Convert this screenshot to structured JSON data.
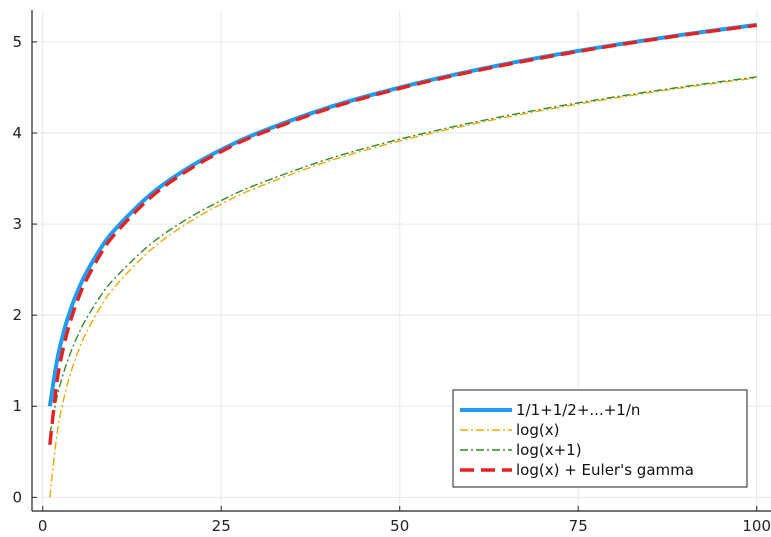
{
  "chart_data": {
    "type": "line",
    "title": "",
    "xlabel": "",
    "ylabel": "",
    "xlim": [
      -1.5,
      102
    ],
    "ylim": [
      -0.15,
      5.35
    ],
    "xticks": [
      0,
      25,
      50,
      75,
      100
    ],
    "yticks": [
      0,
      1,
      2,
      3,
      4,
      5
    ],
    "xtick_labels": [
      "0",
      "25",
      "50",
      "75",
      "100"
    ],
    "ytick_labels": [
      "0",
      "1",
      "2",
      "3",
      "4",
      "5"
    ],
    "grid": true,
    "legend_position": "bottom-right",
    "series": [
      {
        "name": "1/1+1/2+...+1/n",
        "color": "#1f9bf0",
        "style": "solid",
        "x": [
          1,
          2,
          3,
          4,
          5,
          6,
          8,
          10,
          15,
          20,
          25,
          30,
          40,
          50,
          60,
          70,
          80,
          90,
          100
        ],
        "y": [
          1.0,
          1.5,
          1.833,
          2.083,
          2.283,
          2.45,
          2.718,
          2.929,
          3.318,
          3.598,
          3.816,
          3.995,
          4.279,
          4.499,
          4.68,
          4.833,
          4.965,
          5.083,
          5.187
        ]
      },
      {
        "name": "log(x)",
        "color": "#f0a800",
        "style": "dashdot",
        "x": [
          1,
          2,
          3,
          4,
          5,
          6,
          8,
          10,
          15,
          20,
          25,
          30,
          40,
          50,
          60,
          70,
          80,
          90,
          100
        ],
        "y": [
          0.0,
          0.693,
          1.099,
          1.386,
          1.609,
          1.792,
          2.079,
          2.303,
          2.708,
          2.996,
          3.219,
          3.401,
          3.689,
          3.912,
          4.094,
          4.248,
          4.382,
          4.5,
          4.605
        ]
      },
      {
        "name": "log(x+1)",
        "color": "#2e8b2e",
        "style": "dashdot",
        "x": [
          1,
          2,
          3,
          4,
          5,
          6,
          8,
          10,
          15,
          20,
          25,
          30,
          40,
          50,
          60,
          70,
          80,
          90,
          100
        ],
        "y": [
          0.693,
          1.099,
          1.386,
          1.609,
          1.792,
          1.946,
          2.197,
          2.398,
          2.773,
          3.045,
          3.258,
          3.434,
          3.714,
          3.932,
          4.111,
          4.263,
          4.394,
          4.511,
          4.615
        ]
      },
      {
        "name": "log(x) + Euler's gamma",
        "color": "#e82020",
        "style": "dash",
        "x": [
          1,
          2,
          3,
          4,
          5,
          6,
          8,
          10,
          15,
          20,
          25,
          30,
          40,
          50,
          60,
          70,
          80,
          90,
          100
        ],
        "y": [
          0.577,
          1.27,
          1.676,
          1.963,
          2.186,
          2.369,
          2.656,
          2.88,
          3.285,
          3.573,
          3.796,
          3.978,
          4.266,
          4.489,
          4.671,
          4.825,
          4.959,
          5.077,
          5.182
        ]
      }
    ]
  }
}
